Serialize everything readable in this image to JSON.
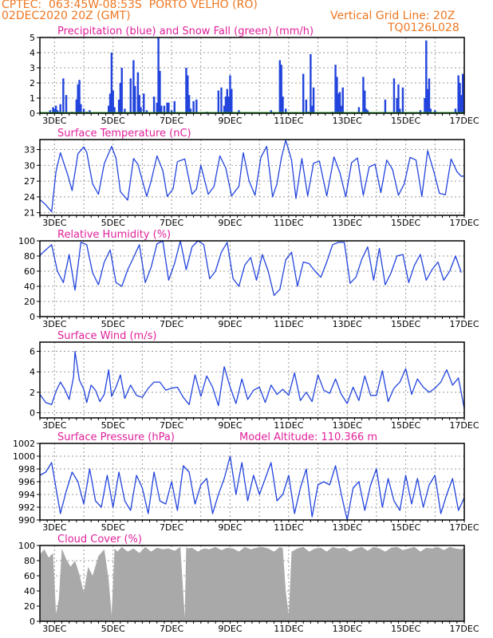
{
  "header": {
    "line1": "CPTEC:  063:45W-08:53S  PORTO VELHO (RO)",
    "line2": "02DEC2020 20Z (GMT)",
    "grid_note": "Vertical Grid Line: 20Z",
    "code": "TQ0126L028",
    "model_altitude": "Model Altitude: 110.366 m"
  },
  "colors": {
    "header": "#ee7722",
    "title": "#e0209a",
    "series": "#2244dd",
    "snow": "#22aa22",
    "cloud": "#a9a9a9",
    "grid": "#999999"
  },
  "chart_data": [
    {
      "type": "bar",
      "title": "Precipitation (blue) and Snow Fall (green) (mm/h)",
      "x_tick_labels": [
        "3DEC",
        "5DEC",
        "7DEC",
        "9DEC",
        "11DEC",
        "13DEC",
        "15DEC",
        "17DEC"
      ],
      "ylim": [
        0,
        5
      ],
      "y_ticks": [
        0,
        1,
        2,
        3,
        4,
        5
      ],
      "grid": true,
      "series": [
        {
          "name": "Precipitation",
          "color": "#2244dd",
          "x": [
            2.85,
            2.95,
            3.0,
            3.05,
            3.1,
            3.15,
            3.2,
            3.3,
            3.4,
            3.6,
            3.75,
            3.8,
            3.85,
            3.9,
            4.0,
            4.1,
            4.2,
            4.85,
            4.9,
            4.95,
            5.0,
            5.05,
            5.2,
            5.25,
            5.3,
            5.4,
            5.6,
            5.7,
            5.75,
            5.85,
            5.9,
            5.95,
            6.05,
            6.15,
            6.4,
            6.5,
            6.55,
            6.6,
            6.65,
            6.75,
            6.85,
            6.9,
            7.0,
            7.1,
            7.5,
            7.55,
            7.6,
            7.65,
            7.75,
            7.85,
            8.2,
            8.6,
            8.7,
            8.8,
            8.85,
            8.9,
            8.95,
            9.0,
            9.05,
            9.3,
            10.4,
            10.7,
            10.75,
            10.8,
            10.9,
            11.5,
            11.6,
            11.65,
            11.7,
            11.75,
            11.8,
            11.85,
            12.5,
            12.6,
            12.65,
            12.7,
            12.75,
            12.8,
            12.85,
            13.4,
            13.55,
            13.6,
            13.65,
            13.7,
            14.3,
            14.6,
            14.7,
            14.75,
            14.8,
            14.9,
            15.5,
            15.65,
            15.7,
            15.75,
            15.8,
            15.85,
            16.0,
            16.7,
            16.8,
            16.85,
            16.9,
            16.95
          ],
          "values": [
            0.2,
            0.4,
            0.3,
            0.5,
            0.2,
            0.1,
            0.6,
            2.3,
            1.2,
            0.1,
            0.9,
            1.9,
            2.2,
            0.6,
            0.3,
            0.1,
            0.2,
            0.5,
            1.3,
            4.0,
            1.5,
            0.4,
            0.9,
            2.0,
            3.0,
            0.3,
            2.3,
            3.5,
            1.8,
            2.7,
            1.2,
            0.4,
            1.3,
            0.2,
            1.1,
            0.7,
            5.0,
            2.8,
            0.5,
            0.5,
            0.7,
            0.7,
            0.2,
            0.8,
            3.0,
            2.5,
            1.2,
            0.3,
            0.8,
            0.9,
            0.1,
            1.5,
            1.7,
            0.5,
            1.1,
            1.6,
            1.1,
            2.5,
            1.6,
            0.2,
            0.2,
            3.5,
            3.2,
            1.1,
            0.3,
            2.6,
            0.9,
            0.1,
            0.1,
            3.9,
            0.5,
            1.7,
            0.1,
            3.2,
            2.4,
            1.3,
            1.4,
            0.5,
            1.7,
            0.4,
            2.4,
            1.5,
            0.3,
            0.2,
            0.9,
            2.3,
            1.0,
            1.9,
            0.3,
            1.7,
            0.2,
            1.0,
            4.8,
            1.6,
            2.3,
            0.3,
            0.2,
            0.3,
            2.5,
            2.0,
            1.2,
            2.6
          ]
        },
        {
          "name": "Snow Fall",
          "color": "#22aa22",
          "x": [
            2.5,
            17.0
          ],
          "values": [
            0,
            0
          ]
        }
      ]
    },
    {
      "type": "line",
      "title": "Surface Temperature (nC)",
      "x_tick_labels": [
        "3DEC",
        "5DEC",
        "7DEC",
        "9DEC",
        "11DEC",
        "13DEC",
        "15DEC",
        "17DEC"
      ],
      "ylim": [
        20.5,
        34.9
      ],
      "y_ticks": [
        21,
        24,
        27,
        30,
        33
      ],
      "grid": true,
      "x": [
        2.5,
        2.7,
        2.9,
        3.05,
        3.2,
        3.45,
        3.6,
        3.8,
        4.0,
        4.1,
        4.3,
        4.5,
        4.7,
        4.95,
        5.1,
        5.25,
        5.5,
        5.7,
        5.85,
        6.15,
        6.3,
        6.5,
        6.7,
        6.85,
        7.05,
        7.2,
        7.45,
        7.7,
        7.85,
        8.0,
        8.25,
        8.45,
        8.65,
        8.85,
        9.05,
        9.3,
        9.45,
        9.65,
        9.85,
        10.05,
        10.25,
        10.45,
        10.6,
        10.75,
        10.9,
        11.1,
        11.25,
        11.45,
        11.65,
        11.85,
        12.05,
        12.3,
        12.55,
        12.75,
        12.95,
        13.15,
        13.35,
        13.55,
        13.75,
        13.95,
        14.15,
        14.35,
        14.55,
        14.75,
        14.95,
        15.15,
        15.35,
        15.55,
        15.75,
        15.95,
        16.15,
        16.35,
        16.55,
        16.75,
        16.9,
        17.0
      ],
      "values": [
        23.5,
        22.5,
        21.2,
        28.8,
        32.4,
        28.2,
        25.2,
        32.2,
        33.5,
        32.5,
        26.5,
        24.5,
        30.3,
        33.6,
        31.4,
        25.0,
        23.4,
        31.3,
        30.2,
        24.1,
        27.0,
        31.8,
        29.0,
        24.1,
        25.5,
        30.7,
        31.2,
        24.5,
        25.5,
        30.0,
        24.5,
        26.0,
        31.8,
        29.5,
        24.2,
        26.0,
        32.4,
        27.0,
        24.3,
        31.5,
        33.6,
        24.0,
        26.5,
        31.4,
        34.8,
        31.0,
        23.7,
        31.3,
        24.2,
        30.4,
        30.8,
        24.2,
        31.6,
        28.6,
        24.0,
        30.5,
        31.4,
        24.3,
        29.7,
        30.2,
        24.8,
        31.0,
        29.2,
        24.3,
        26.5,
        31.5,
        31.0,
        24.1,
        32.8,
        29.0,
        24.7,
        24.4,
        31.2,
        28.8,
        27.9,
        28.0
      ]
    },
    {
      "type": "line",
      "title": "Relative Humidity (%)",
      "x_tick_labels": [
        "3DEC",
        "5DEC",
        "7DEC",
        "9DEC",
        "11DEC",
        "13DEC",
        "15DEC",
        "17DEC"
      ],
      "ylim": [
        0,
        100
      ],
      "y_ticks": [
        0,
        20,
        40,
        60,
        80,
        100
      ],
      "grid": true,
      "x": [
        2.5,
        2.7,
        2.9,
        3.1,
        3.3,
        3.5,
        3.7,
        3.9,
        4.1,
        4.3,
        4.5,
        4.7,
        4.9,
        5.1,
        5.3,
        5.5,
        5.7,
        5.9,
        6.1,
        6.3,
        6.5,
        6.7,
        6.9,
        7.1,
        7.3,
        7.5,
        7.7,
        7.9,
        8.1,
        8.3,
        8.5,
        8.7,
        8.9,
        9.1,
        9.3,
        9.5,
        9.7,
        9.9,
        10.1,
        10.3,
        10.5,
        10.7,
        10.9,
        11.1,
        11.3,
        11.5,
        11.7,
        11.9,
        12.1,
        12.3,
        12.5,
        12.7,
        12.9,
        13.1,
        13.3,
        13.5,
        13.7,
        13.9,
        14.1,
        14.3,
        14.5,
        14.7,
        14.9,
        15.1,
        15.3,
        15.5,
        15.7,
        15.9,
        16.1,
        16.3,
        16.5,
        16.7,
        16.9
      ],
      "values": [
        81,
        88,
        95,
        60,
        45,
        82,
        35,
        98,
        95,
        58,
        42,
        72,
        88,
        45,
        40,
        62,
        78,
        95,
        45,
        65,
        96,
        100,
        48,
        70,
        100,
        62,
        92,
        100,
        95,
        50,
        60,
        85,
        98,
        50,
        40,
        68,
        78,
        48,
        82,
        60,
        28,
        36,
        75,
        85,
        40,
        72,
        70,
        60,
        52,
        72,
        95,
        98,
        98,
        44,
        52,
        76,
        92,
        48,
        90,
        42,
        58,
        80,
        82,
        45,
        68,
        82,
        48,
        62,
        72,
        48,
        60,
        80,
        58
      ]
    },
    {
      "type": "line",
      "title": "Surface Wind (m/s)",
      "x_tick_labels": [
        "3DEC",
        "5DEC",
        "7DEC",
        "9DEC",
        "11DEC",
        "13DEC",
        "15DEC",
        "17DEC"
      ],
      "ylim": [
        -0.5,
        6.9
      ],
      "y_ticks": [
        0,
        2,
        4,
        6
      ],
      "grid": true,
      "x": [
        2.5,
        2.7,
        2.9,
        3.05,
        3.2,
        3.35,
        3.5,
        3.65,
        3.7,
        3.85,
        4.0,
        4.1,
        4.25,
        4.4,
        4.55,
        4.7,
        4.85,
        4.95,
        5.1,
        5.25,
        5.4,
        5.6,
        5.8,
        6.0,
        6.2,
        6.4,
        6.6,
        6.8,
        7.0,
        7.2,
        7.4,
        7.6,
        7.8,
        8.0,
        8.2,
        8.4,
        8.6,
        8.8,
        9.0,
        9.2,
        9.4,
        9.6,
        9.8,
        10.0,
        10.2,
        10.4,
        10.6,
        10.8,
        11.0,
        11.2,
        11.4,
        11.6,
        11.8,
        12.0,
        12.2,
        12.4,
        12.6,
        12.8,
        13.0,
        13.2,
        13.4,
        13.6,
        13.8,
        14.0,
        14.2,
        14.4,
        14.6,
        14.8,
        15.0,
        15.2,
        15.4,
        15.6,
        15.8,
        16.0,
        16.2,
        16.4,
        16.6,
        16.8,
        17.0
      ],
      "values": [
        1.8,
        1.0,
        0.8,
        2.1,
        3.0,
        2.3,
        1.3,
        3.5,
        6.0,
        3.2,
        2.3,
        1.0,
        2.7,
        2.2,
        1.1,
        1.8,
        4.2,
        1.6,
        2.5,
        3.7,
        1.4,
        2.7,
        1.7,
        1.5,
        2.4,
        3.0,
        3.0,
        2.2,
        2.4,
        2.5,
        1.5,
        0.8,
        3.7,
        1.6,
        3.6,
        2.5,
        0.7,
        4.5,
        2.5,
        0.9,
        3.3,
        1.3,
        2.2,
        2.5,
        1.0,
        2.7,
        1.8,
        2.3,
        1.7,
        3.9,
        1.2,
        2.0,
        1.1,
        3.7,
        2.2,
        1.9,
        3.3,
        1.8,
        0.9,
        2.5,
        1.2,
        3.6,
        1.7,
        1.7,
        4.1,
        1.1,
        2.4,
        3.0,
        4.3,
        1.8,
        3.3,
        2.5,
        2.0,
        2.4,
        3.0,
        4.2,
        2.7,
        3.4,
        0.4
      ]
    },
    {
      "type": "line",
      "title": "Surface Pressure (hPa)",
      "x_tick_labels": [
        "3DEC",
        "5DEC",
        "7DEC",
        "9DEC",
        "11DEC",
        "13DEC",
        "15DEC",
        "17DEC"
      ],
      "ylim": [
        990,
        1002
      ],
      "y_ticks": [
        990,
        992,
        994,
        996,
        998,
        1000,
        1002
      ],
      "grid": true,
      "x": [
        2.5,
        2.7,
        2.9,
        3.2,
        3.4,
        3.6,
        3.8,
        4.0,
        4.2,
        4.4,
        4.6,
        4.8,
        5.0,
        5.2,
        5.4,
        5.6,
        5.8,
        6.0,
        6.2,
        6.4,
        6.6,
        6.8,
        7.0,
        7.2,
        7.4,
        7.6,
        7.8,
        8.0,
        8.2,
        8.4,
        8.6,
        8.8,
        9.0,
        9.2,
        9.4,
        9.6,
        9.8,
        10.0,
        10.2,
        10.4,
        10.6,
        10.8,
        11.0,
        11.2,
        11.4,
        11.6,
        11.8,
        12.0,
        12.2,
        12.4,
        12.6,
        12.8,
        13.0,
        13.2,
        13.4,
        13.6,
        13.8,
        14.0,
        14.2,
        14.4,
        14.6,
        14.8,
        15.0,
        15.2,
        15.4,
        15.6,
        15.8,
        16.0,
        16.2,
        16.4,
        16.6,
        16.8,
        17.0
      ],
      "values": [
        997,
        997.5,
        999,
        991,
        994.5,
        997.5,
        996,
        992.5,
        998,
        993,
        992,
        997,
        992,
        997.5,
        993,
        991.5,
        997,
        995,
        991,
        997.5,
        993,
        992.5,
        996,
        991.5,
        998.5,
        997.5,
        992.5,
        995.5,
        996.5,
        991,
        994,
        996.5,
        1000,
        994,
        999,
        993,
        997,
        994,
        996.5,
        999,
        993,
        994,
        997,
        991,
        995,
        998,
        990.5,
        995.5,
        996,
        995.5,
        998.5,
        994,
        990,
        995,
        996,
        991.5,
        995.5,
        998,
        992,
        996.5,
        993,
        991.5,
        997,
        992.5,
        996.5,
        992,
        995.5,
        997,
        991,
        994,
        996.5,
        991.5,
        993.5
      ]
    },
    {
      "type": "area",
      "title": "Cloud Cover (%)",
      "x_tick_labels": [
        "3DEC",
        "5DEC",
        "7DEC",
        "9DEC",
        "11DEC",
        "13DEC",
        "15DEC",
        "17DEC"
      ],
      "ylim": [
        0,
        100
      ],
      "y_ticks": [
        0,
        20,
        40,
        60,
        80,
        100
      ],
      "grid": true,
      "x": [
        2.5,
        2.65,
        2.8,
        2.95,
        3.05,
        3.15,
        3.25,
        3.4,
        3.55,
        3.7,
        3.85,
        4.0,
        4.15,
        4.3,
        4.5,
        4.7,
        4.85,
        4.95,
        5.05,
        5.15,
        5.3,
        5.5,
        5.7,
        5.9,
        6.1,
        6.3,
        6.5,
        6.7,
        6.9,
        7.1,
        7.3,
        7.45,
        7.5,
        7.55,
        7.7,
        7.9,
        8.1,
        8.3,
        8.5,
        8.7,
        8.9,
        9.1,
        9.3,
        9.5,
        9.7,
        9.9,
        10.1,
        10.3,
        10.5,
        10.7,
        10.8,
        10.9,
        11.0,
        11.1,
        11.3,
        11.5,
        11.7,
        11.9,
        12.1,
        12.3,
        12.5,
        12.7,
        12.9,
        13.1,
        13.3,
        13.5,
        13.7,
        13.9,
        14.1,
        14.3,
        14.5,
        14.7,
        14.9,
        15.1,
        15.3,
        15.5,
        15.7,
        15.9,
        16.1,
        16.3,
        16.5,
        16.7,
        16.9,
        17.0
      ],
      "values": [
        88,
        95,
        84,
        90,
        10,
        30,
        96,
        82,
        72,
        80,
        62,
        38,
        72,
        60,
        86,
        95,
        55,
        8,
        96,
        92,
        98,
        92,
        96,
        90,
        98,
        92,
        97,
        95,
        96,
        93,
        98,
        5,
        98,
        96,
        97,
        92,
        96,
        95,
        98,
        94,
        97,
        96,
        92,
        98,
        95,
        97,
        98,
        96,
        92,
        98,
        96,
        40,
        8,
        92,
        96,
        98,
        92,
        96,
        97,
        92,
        98,
        96,
        97,
        92,
        96,
        98,
        93,
        98,
        96,
        92,
        97,
        98,
        94,
        96,
        98,
        92,
        97,
        96,
        98,
        94,
        98,
        96,
        95,
        97
      ]
    }
  ]
}
